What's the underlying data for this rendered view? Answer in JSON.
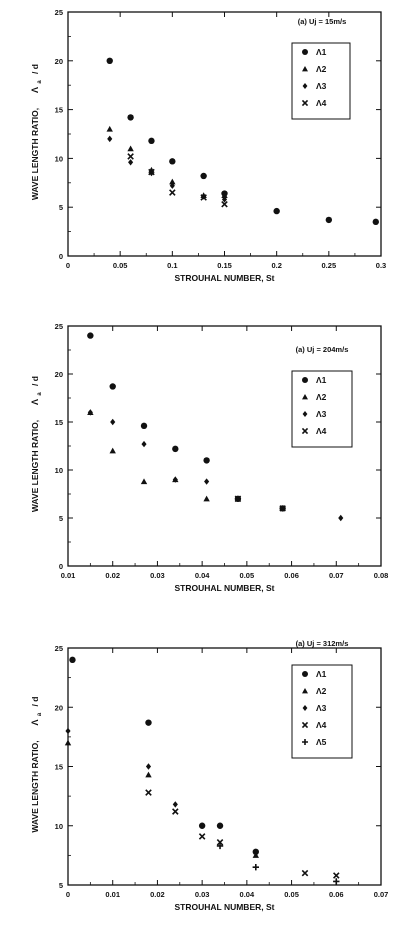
{
  "chart_data": [
    {
      "type": "scatter",
      "annotation": "(a) Uj = 15m/s",
      "xlabel": "STROUHAL NUMBER, St",
      "ylabel": "WAVE LENGTH RATIO,",
      "ylabel_symbol": "Λ",
      "ylabel_sub": "a",
      "ylabel_suffix": "/ d",
      "xlim": [
        0,
        0.3
      ],
      "ylim": [
        0,
        25
      ],
      "xticks": [
        "0",
        "0.05",
        "0.1",
        "0.15",
        "0.2",
        "0.25",
        "0.3"
      ],
      "yticks": [
        "0",
        "5",
        "10",
        "15",
        "20",
        "25"
      ],
      "grid": false,
      "legend_position": "top-right",
      "series": [
        {
          "name": "Λ1",
          "marker": "circle",
          "x": [
            0.04,
            0.06,
            0.08,
            0.1,
            0.13,
            0.15,
            0.2,
            0.25,
            0.295
          ],
          "y": [
            20.0,
            14.2,
            11.8,
            9.7,
            8.2,
            6.4,
            4.6,
            3.7,
            3.5
          ]
        },
        {
          "name": "Λ2",
          "marker": "triangle",
          "x": [
            0.04,
            0.06,
            0.08,
            0.1,
            0.13,
            0.15
          ],
          "y": [
            13.0,
            11.0,
            8.8,
            7.6,
            6.2,
            6.2
          ]
        },
        {
          "name": "Λ3",
          "marker": "diamond",
          "x": [
            0.04,
            0.06,
            0.08,
            0.1,
            0.13,
            0.15
          ],
          "y": [
            12.0,
            9.6,
            8.5,
            7.2,
            6.1,
            5.8
          ]
        },
        {
          "name": "Λ4",
          "marker": "cross",
          "x": [
            0.06,
            0.08,
            0.1,
            0.13,
            0.15
          ],
          "y": [
            10.2,
            8.6,
            6.5,
            6.0,
            5.3
          ]
        }
      ]
    },
    {
      "type": "scatter",
      "annotation": "(a) Uj = 204m/s",
      "xlabel": "STROUHAL NUMBER, St",
      "ylabel": "WAVE LENGTH RATIO,",
      "ylabel_symbol": "Λ",
      "ylabel_sub": "a",
      "ylabel_suffix": "/ d",
      "xlim": [
        0.01,
        0.08
      ],
      "ylim": [
        0,
        25
      ],
      "xticks": [
        "0.01",
        "0.02",
        "0.03",
        "0.04",
        "0.05",
        "0.06",
        "0.07",
        "0.08"
      ],
      "yticks": [
        "0",
        "5",
        "10",
        "15",
        "20",
        "25"
      ],
      "grid": false,
      "legend_position": "top-right",
      "series": [
        {
          "name": "Λ1",
          "marker": "circle",
          "x": [
            0.015,
            0.02,
            0.027,
            0.034,
            0.041,
            0.048,
            0.058
          ],
          "y": [
            24.0,
            18.7,
            14.6,
            12.2,
            11.0,
            7.0,
            6.0
          ]
        },
        {
          "name": "Λ2",
          "marker": "triangle",
          "x": [
            0.015,
            0.02,
            0.027,
            0.034,
            0.041
          ],
          "y": [
            16.0,
            12.0,
            8.8,
            9.0,
            7.0
          ]
        },
        {
          "name": "Λ3",
          "marker": "diamond",
          "x": [
            0.015,
            0.02,
            0.027,
            0.034,
            0.041,
            0.071
          ],
          "y": [
            16.0,
            15.0,
            12.7,
            9.0,
            8.8,
            5.0
          ]
        },
        {
          "name": "Λ4",
          "marker": "cross",
          "x": [
            0.048,
            0.058
          ],
          "y": [
            7.0,
            6.0
          ]
        }
      ]
    },
    {
      "type": "scatter",
      "annotation": "(a) Uj = 312m/s",
      "xlabel": "STROUHAL NUMBER, St",
      "ylabel": "WAVE LENGTH RATIO,",
      "ylabel_symbol": "Λ",
      "ylabel_sub": "a",
      "ylabel_suffix": "/ d",
      "xlim": [
        0,
        0.07
      ],
      "ylim": [
        5,
        25
      ],
      "xticks": [
        "0",
        "0.01",
        "0.02",
        "0.03",
        "0.04",
        "0.05",
        "0.06",
        "0.07"
      ],
      "yticks": [
        "5",
        "10",
        "15",
        "20",
        "25"
      ],
      "grid": false,
      "legend_position": "top-right",
      "series": [
        {
          "name": "Λ1",
          "marker": "circle",
          "x": [
            0.001,
            0.018,
            0.03,
            0.034,
            0.042
          ],
          "y": [
            24.0,
            18.7,
            10.0,
            10.0,
            7.8
          ]
        },
        {
          "name": "Λ2",
          "marker": "triangle",
          "x": [
            0.0,
            0.018,
            0.042
          ],
          "y": [
            17.0,
            14.3,
            7.5
          ]
        },
        {
          "name": "Λ3",
          "marker": "diamond",
          "x": [
            0.0,
            0.018,
            0.024,
            0.03
          ],
          "y": [
            18.0,
            15.0,
            11.8,
            10.0
          ]
        },
        {
          "name": "Λ4",
          "marker": "cross",
          "x": [
            0.018,
            0.024,
            0.03,
            0.034,
            0.053,
            0.06
          ],
          "y": [
            12.8,
            11.2,
            9.1,
            8.6,
            6.0,
            5.8
          ]
        },
        {
          "name": "Λ5",
          "marker": "plus",
          "x": [
            0.034,
            0.042,
            0.06
          ],
          "y": [
            8.3,
            6.5,
            5.3
          ]
        }
      ]
    }
  ]
}
